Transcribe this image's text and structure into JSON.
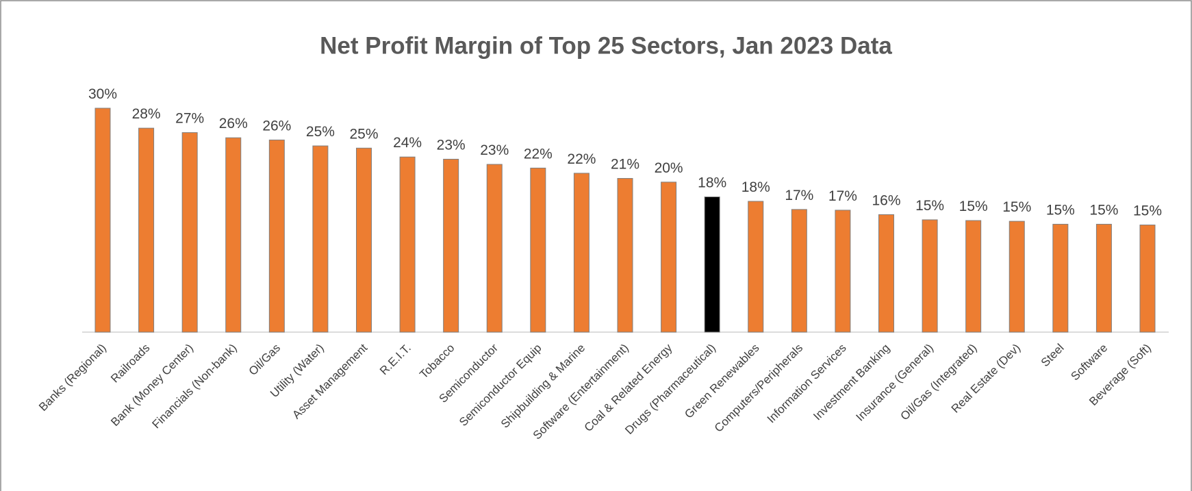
{
  "chart_data": {
    "type": "bar",
    "title": "Net Profit Margin of Top 25 Sectors, Jan 2023 Data",
    "categories": [
      "Banks (Regional)",
      "Railroads",
      "Bank (Money Center)",
      "Financials (Non-bank)",
      "Oil/Gas",
      "Utility (Water)",
      "Asset Management",
      "R.E.I.T.",
      "Tobacco",
      "Semiconductor",
      "Semiconductor Equip",
      "Shipbuilding & Marine",
      "Software (Entertainment)",
      "Coal & Related Energy",
      "Drugs (Pharmaceutical)",
      "Green Renewables",
      "Computers/Peripherals",
      "Information Services",
      "Investment Banking",
      "Insurance (General)",
      "Oil/Gas (Integrated)",
      "Real Estate (Dev)",
      "Steel",
      "Software",
      "Beverage (Soft)"
    ],
    "values": [
      30.3,
      27.6,
      27.0,
      26.3,
      26.0,
      25.2,
      24.9,
      23.7,
      23.4,
      22.7,
      22.2,
      21.5,
      20.8,
      20.3,
      18.3,
      17.7,
      16.6,
      16.5,
      15.9,
      15.2,
      15.1,
      15.0,
      14.6,
      14.6,
      14.5
    ],
    "value_labels": [
      "30%",
      "28%",
      "27%",
      "26%",
      "26%",
      "25%",
      "25%",
      "24%",
      "23%",
      "23%",
      "22%",
      "22%",
      "21%",
      "20%",
      "18%",
      "18%",
      "17%",
      "17%",
      "16%",
      "15%",
      "15%",
      "15%",
      "15%",
      "15%",
      "15%"
    ],
    "colors": [
      "#ED7D31",
      "#ED7D31",
      "#ED7D31",
      "#ED7D31",
      "#ED7D31",
      "#ED7D31",
      "#ED7D31",
      "#ED7D31",
      "#ED7D31",
      "#ED7D31",
      "#ED7D31",
      "#ED7D31",
      "#ED7D31",
      "#ED7D31",
      "#000000",
      "#ED7D31",
      "#ED7D31",
      "#ED7D31",
      "#ED7D31",
      "#ED7D31",
      "#ED7D31",
      "#ED7D31",
      "#ED7D31",
      "#ED7D31",
      "#ED7D31"
    ]
  }
}
